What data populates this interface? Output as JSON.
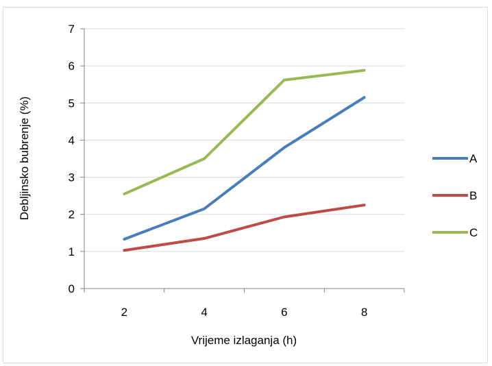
{
  "chart_data": {
    "type": "line",
    "title": "",
    "xlabel": "Vrijeme izlaganja (h)",
    "ylabel": "Debljinsko bubrenje (%)",
    "x": [
      2,
      4,
      6,
      8
    ],
    "ylim": [
      0,
      7
    ],
    "yticks": [
      0,
      1,
      2,
      3,
      4,
      5,
      6,
      7
    ],
    "grid": true,
    "legend_position": "right",
    "series": [
      {
        "name": "A",
        "color": "#4a7ebb",
        "values": [
          1.33,
          2.15,
          3.8,
          5.15
        ]
      },
      {
        "name": "B",
        "color": "#be4b48",
        "values": [
          1.03,
          1.35,
          1.93,
          2.25
        ]
      },
      {
        "name": "C",
        "color": "#98b954",
        "values": [
          2.55,
          3.5,
          5.62,
          5.88
        ]
      }
    ]
  }
}
